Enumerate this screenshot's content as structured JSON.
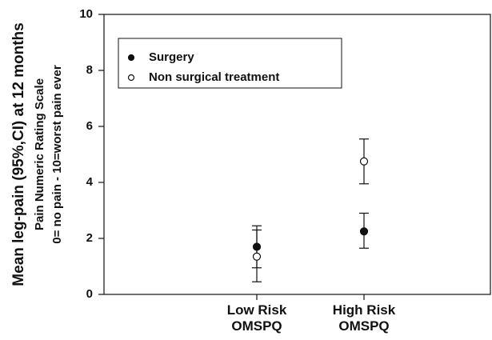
{
  "chart_data": {
    "type": "errorbar",
    "y_label": "Mean leg-pain (95%,CI) at 12 months",
    "y_label_line2": "Pain Numeric Rating Scale",
    "y_label_line3": "0= no pain - 10=worst pain ever",
    "categories": [
      "Low Risk\nOMSPQ",
      "High Risk\nOMSPQ"
    ],
    "ylim": [
      0,
      10
    ],
    "yticks": [
      0,
      2,
      4,
      6,
      8,
      10
    ],
    "series": [
      {
        "name": "Surgery",
        "color": "#111111",
        "values": [
          1.7,
          2.25
        ],
        "lower": [
          0.95,
          1.65
        ],
        "upper": [
          2.45,
          2.9
        ]
      },
      {
        "name": "Non surgical treatment",
        "color": "#ffffff",
        "values": [
          1.35,
          4.75
        ],
        "lower": [
          0.45,
          3.95
        ],
        "upper": [
          2.3,
          5.55
        ]
      }
    ]
  }
}
